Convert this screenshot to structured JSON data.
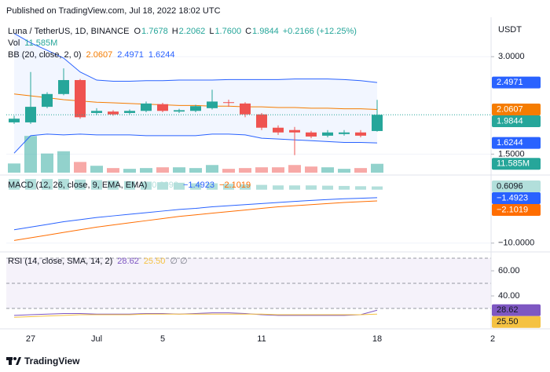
{
  "header": {
    "published": "Published on TradingView.com, Jul 18, 2022 18:02 UTC",
    "currency": "USDT",
    "footer": "TradingView"
  },
  "chart_data": [
    {
      "type": "candlestick",
      "title": "Luna / TetherUS, 1D, BINANCE",
      "ohlc_legend": {
        "o_label": "O",
        "open": "1.7678",
        "h_label": "H",
        "high": "2.2062",
        "l_label": "L",
        "low": "1.7600",
        "c_label": "C",
        "close": "1.9844",
        "change": "+0.2166 (+12.25%)"
      },
      "categories": [
        null,
        "27",
        null,
        null,
        null,
        "Jul",
        null,
        null,
        null,
        "5",
        null,
        null,
        null,
        null,
        null,
        "11",
        null,
        null,
        null,
        null,
        null,
        null,
        "18",
        null,
        null,
        null,
        null,
        null,
        null,
        "2"
      ],
      "open": [
        1.88,
        1.88,
        2.1,
        2.3,
        2.54,
        2.01,
        2.03,
        2.01,
        2.04,
        2.14,
        2.03,
        2.04,
        2.08,
        2.17,
        2.15,
        1.99,
        1.81,
        1.78,
        1.75,
        1.71,
        1.73,
        1.75,
        1.7678,
        null,
        null,
        null,
        null,
        null,
        null,
        null
      ],
      "high": [
        1.97,
        2.69,
        2.33,
        2.76,
        2.56,
        2.08,
        2.05,
        2.06,
        2.18,
        2.16,
        2.07,
        2.13,
        2.37,
        2.21,
        2.17,
        2.01,
        1.84,
        1.82,
        1.77,
        1.78,
        1.78,
        1.78,
        2.2062,
        null,
        null,
        null,
        null,
        null,
        null,
        null
      ],
      "low": [
        1.86,
        1.86,
        2.08,
        2.28,
        1.93,
        1.98,
        1.97,
        1.99,
        2.02,
        2.02,
        2.01,
        2.02,
        2.06,
        2.1,
        1.95,
        1.78,
        1.72,
        1.49,
        1.68,
        1.69,
        1.71,
        1.69,
        1.76,
        null,
        null,
        null,
        null,
        null,
        null,
        null
      ],
      "close": [
        1.93,
        2.1,
        2.3,
        2.54,
        1.95,
        2.04,
        1.99,
        2.04,
        2.15,
        2.04,
        2.05,
        2.11,
        2.18,
        2.16,
        1.99,
        1.81,
        1.75,
        1.75,
        1.7,
        1.75,
        1.75,
        1.71,
        1.9844,
        null,
        null,
        null,
        null,
        null,
        null,
        null
      ],
      "up_color": "#26a69a",
      "down_color": "#ef5350",
      "log_scale": true,
      "ylim": [
        1.3,
        3.84
      ],
      "yticks": [
        {
          "value": 3,
          "label": "3.0000"
        },
        {
          "value": 1.5,
          "label": "1.5000"
        }
      ],
      "grid": true,
      "volume": {
        "name": "Vol",
        "value_label": "11.585M",
        "ylim": [
          0,
          197
        ],
        "values": [
          12,
          48,
          25,
          28,
          14,
          9,
          6,
          5,
          6,
          7,
          7,
          6,
          10,
          5,
          6,
          7,
          7,
          10,
          8,
          7,
          5,
          6,
          11.585,
          null,
          null,
          null,
          null,
          null,
          null,
          null
        ]
      },
      "bollinger": {
        "name": "BB (20, close, 2, 0)",
        "fill": "#2962ff",
        "series": [
          {
            "color": "#f57c00",
            "value_label": "2.0607",
            "values": [
              2.3,
              2.27,
              2.24,
              2.21,
              2.19,
              2.17,
              2.16,
              2.15,
              2.14,
              2.13,
              2.12,
              2.12,
              2.11,
              2.11,
              2.1,
              2.1,
              2.09,
              2.09,
              2.08,
              2.08,
              2.07,
              2.07,
              2.0607,
              null,
              null,
              null,
              null,
              null,
              null,
              null
            ]
          },
          {
            "color": "#2962ff",
            "value_label": "2.4971",
            "values": [
              3.54,
              3.31,
              3.14,
              2.97,
              2.69,
              2.54,
              2.52,
              2.52,
              2.53,
              2.53,
              2.54,
              2.54,
              2.54,
              2.55,
              2.55,
              2.55,
              2.55,
              2.56,
              2.56,
              2.56,
              2.55,
              2.53,
              2.4971,
              null,
              null,
              null,
              null,
              null,
              null,
              null
            ]
          },
          {
            "color": "#2962ff",
            "value_label": "1.6244",
            "values": [
              1.51,
              1.71,
              1.73,
              1.72,
              1.73,
              1.72,
              1.72,
              1.72,
              1.71,
              1.71,
              1.71,
              1.71,
              1.73,
              1.73,
              1.72,
              1.68,
              1.67,
              1.66,
              1.65,
              1.64,
              1.63,
              1.63,
              1.6244,
              null,
              null,
              null,
              null,
              null,
              null,
              null
            ]
          }
        ]
      }
    },
    {
      "type": "macd",
      "title": "MACD (12, 26, close, 9, EMA, EMA)",
      "ylim": [
        -11.5,
        2.6
      ],
      "yticks": [
        {
          "value": -10,
          "label": "−10.0000"
        }
      ],
      "grid": true,
      "histogram": {
        "color": "#b2dfdb",
        "value_label": "0.6096",
        "values": [
          2.0,
          2.0,
          2.0,
          2.0,
          1.9,
          1.8,
          1.7,
          1.6,
          1.5,
          1.4,
          1.3,
          1.2,
          1.2,
          1.1,
          1.0,
          0.9,
          0.8,
          0.8,
          0.8,
          0.75,
          0.7,
          0.65,
          0.6096,
          null,
          null,
          null,
          null,
          null,
          null,
          null
        ]
      },
      "series": [
        {
          "color": "#2962ff",
          "value_label": "−1.4923",
          "values": [
            -7.5,
            -7.0,
            -6.5,
            -6.0,
            -5.6,
            -5.2,
            -4.9,
            -4.6,
            -4.3,
            -4.0,
            -3.7,
            -3.5,
            -3.2,
            -3.0,
            -2.8,
            -2.6,
            -2.4,
            -2.2,
            -2.0,
            -1.85,
            -1.7,
            -1.6,
            -1.4923,
            null,
            null,
            null,
            null,
            null,
            null,
            null
          ]
        },
        {
          "color": "#ff6d00",
          "value_label": "−2.1019",
          "values": [
            -9.5,
            -9.0,
            -8.5,
            -8.0,
            -7.5,
            -7.0,
            -6.6,
            -6.2,
            -5.8,
            -5.4,
            -5.0,
            -4.7,
            -4.4,
            -4.1,
            -3.8,
            -3.5,
            -3.2,
            -3.0,
            -2.8,
            -2.6,
            -2.4,
            -2.25,
            -2.1019,
            null,
            null,
            null,
            null,
            null,
            null,
            null
          ]
        }
      ]
    },
    {
      "type": "rsi",
      "title": "RSI (14, close, SMA, 14, 2)",
      "na_marks": "∅ ∅",
      "ylim": [
        14.4,
        74.4
      ],
      "yticks": [
        {
          "value": 60,
          "label": "60.00"
        },
        {
          "value": 40,
          "label": "40.00"
        }
      ],
      "levels": [
        70,
        50,
        30
      ],
      "band_color": "#7e57c2",
      "series": [
        {
          "color": "#7e57c2",
          "value_label": "28.62",
          "values": [
            24.5,
            25,
            25.5,
            26,
            26,
            25.5,
            25.5,
            25.5,
            26,
            26,
            25.5,
            26,
            26.5,
            26.5,
            26,
            25,
            24.5,
            24.5,
            24.5,
            24.5,
            24.5,
            25,
            28.62,
            null,
            null,
            null,
            null,
            null,
            null,
            null
          ]
        },
        {
          "color": "#f5c242",
          "value_label": "25.50",
          "values": [
            23,
            23.5,
            24,
            24.5,
            25,
            25,
            25,
            25,
            25.5,
            25.5,
            25.5,
            25.5,
            25.5,
            25.5,
            25.5,
            25.5,
            25,
            25,
            25,
            25,
            25,
            25,
            25.5,
            null,
            null,
            null,
            null,
            null,
            null,
            null
          ]
        }
      ]
    }
  ]
}
